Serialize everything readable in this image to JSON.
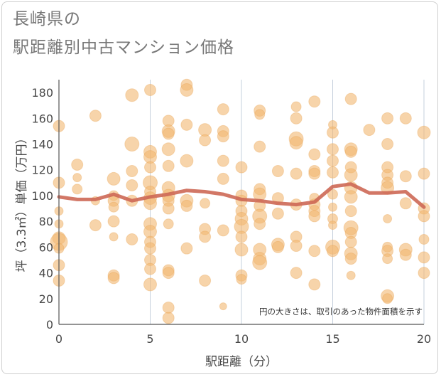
{
  "title_line1": "長崎県の",
  "title_line2": "駅距離別中古マンション価格",
  "chart_data": {
    "type": "scatter",
    "title": "長崎県の駅距離別中古マンション価格",
    "xlabel": "駅距離（分）",
    "ylabel": "坪（3.3㎡）単価（万円）",
    "xlim": [
      0,
      20
    ],
    "ylim": [
      0,
      190
    ],
    "xticks": [
      0,
      5,
      10,
      15,
      20
    ],
    "yticks": [
      0,
      20,
      40,
      60,
      80,
      100,
      120,
      140,
      160,
      180
    ],
    "grid": true,
    "annotation": "円の大きさは、取引のあった物件面積を示す",
    "colors": {
      "bubble": "#f2b872",
      "line": "#cd6855",
      "grid": "#c5d0dc",
      "axis": "#555555"
    },
    "series": [
      {
        "kind": "bubbles",
        "points": [
          [
            0,
            154,
            8
          ],
          [
            0,
            110,
            8
          ],
          [
            0,
            88,
            6
          ],
          [
            0,
            78,
            6
          ],
          [
            0,
            67,
            9
          ],
          [
            0,
            64,
            12
          ],
          [
            0,
            59,
            7
          ],
          [
            0,
            46,
            8
          ],
          [
            0,
            34,
            8
          ],
          [
            1,
            124,
            8
          ],
          [
            1,
            114,
            6
          ],
          [
            1,
            105,
            7
          ],
          [
            2,
            162,
            8
          ],
          [
            2,
            96,
            6
          ],
          [
            2,
            77,
            8
          ],
          [
            3,
            113,
            9
          ],
          [
            3,
            100,
            7
          ],
          [
            3,
            96,
            8
          ],
          [
            3,
            91,
            7
          ],
          [
            3,
            80,
            8
          ],
          [
            3,
            68,
            6
          ],
          [
            3,
            38,
            8
          ],
          [
            3,
            36,
            8
          ],
          [
            4,
            178,
            9
          ],
          [
            4,
            140,
            10
          ],
          [
            4,
            119,
            8
          ],
          [
            4,
            108,
            8
          ],
          [
            4,
            96,
            8
          ],
          [
            4,
            66,
            8
          ],
          [
            5,
            182,
            8
          ],
          [
            5,
            134,
            9
          ],
          [
            5,
            130,
            9
          ],
          [
            5,
            122,
            8
          ],
          [
            5,
            110,
            10
          ],
          [
            5,
            103,
            8
          ],
          [
            5,
            98,
            9
          ],
          [
            5,
            94,
            9
          ],
          [
            5,
            78,
            9
          ],
          [
            5,
            72,
            9
          ],
          [
            5,
            64,
            8
          ],
          [
            5,
            59,
            8
          ],
          [
            5,
            50,
            8
          ],
          [
            5,
            43,
            8
          ],
          [
            5,
            31,
            9
          ],
          [
            6,
            158,
            8
          ],
          [
            6,
            150,
            9
          ],
          [
            6,
            148,
            8
          ],
          [
            6,
            136,
            9
          ],
          [
            6,
            123,
            8
          ],
          [
            6,
            106,
            9
          ],
          [
            6,
            100,
            9
          ],
          [
            6,
            96,
            8
          ],
          [
            6,
            90,
            8
          ],
          [
            6,
            78,
            7
          ],
          [
            6,
            42,
            8
          ],
          [
            6,
            40,
            8
          ],
          [
            6,
            13,
            8
          ],
          [
            6,
            5,
            8
          ],
          [
            7,
            186,
            8
          ],
          [
            7,
            182,
            9
          ],
          [
            7,
            155,
            8
          ],
          [
            7,
            127,
            9
          ],
          [
            7,
            96,
            9
          ],
          [
            7,
            92,
            8
          ],
          [
            7,
            59,
            8
          ],
          [
            8,
            151,
            9
          ],
          [
            8,
            143,
            8
          ],
          [
            8,
            94,
            7
          ],
          [
            8,
            74,
            8
          ],
          [
            8,
            68,
            8
          ],
          [
            8,
            34,
            8
          ],
          [
            9,
            167,
            8
          ],
          [
            9,
            150,
            8
          ],
          [
            9,
            146,
            8
          ],
          [
            9,
            127,
            8
          ],
          [
            9,
            113,
            8
          ],
          [
            9,
            73,
            8
          ],
          [
            9,
            14,
            5
          ],
          [
            10,
            122,
            8
          ],
          [
            10,
            100,
            8
          ],
          [
            10,
            96,
            8
          ],
          [
            10,
            88,
            8
          ],
          [
            10,
            82,
            9
          ],
          [
            10,
            76,
            10
          ],
          [
            10,
            68,
            8
          ],
          [
            10,
            58,
            9
          ],
          [
            10,
            38,
            8
          ],
          [
            10,
            35,
            7
          ],
          [
            11,
            166,
            8
          ],
          [
            11,
            163,
            7
          ],
          [
            11,
            138,
            8
          ],
          [
            11,
            105,
            8
          ],
          [
            11,
            101,
            9
          ],
          [
            11,
            92,
            8
          ],
          [
            11,
            84,
            10
          ],
          [
            11,
            78,
            8
          ],
          [
            11,
            58,
            9
          ],
          [
            11,
            51,
            9
          ],
          [
            11,
            48,
            10
          ],
          [
            12,
            119,
            8
          ],
          [
            12,
            98,
            8
          ],
          [
            12,
            86,
            8
          ],
          [
            12,
            62,
            9
          ],
          [
            12,
            60,
            8
          ],
          [
            13,
            169,
            7
          ],
          [
            13,
            160,
            8
          ],
          [
            13,
            144,
            10
          ],
          [
            13,
            141,
            9
          ],
          [
            13,
            117,
            8
          ],
          [
            13,
            93,
            8
          ],
          [
            13,
            68,
            8
          ],
          [
            13,
            61,
            8
          ],
          [
            13,
            40,
            8
          ],
          [
            14,
            173,
            8
          ],
          [
            14,
            132,
            8
          ],
          [
            14,
            119,
            8
          ],
          [
            14,
            117,
            8
          ],
          [
            14,
            98,
            7
          ],
          [
            14,
            93,
            8
          ],
          [
            14,
            88,
            8
          ],
          [
            14,
            84,
            8
          ],
          [
            14,
            57,
            8
          ],
          [
            14,
            31,
            8
          ],
          [
            15,
            155,
            6
          ],
          [
            15,
            149,
            8
          ],
          [
            15,
            136,
            8
          ],
          [
            15,
            127,
            8
          ],
          [
            15,
            118,
            8
          ],
          [
            15,
            101,
            7
          ],
          [
            15,
            91,
            6
          ],
          [
            15,
            82,
            7
          ],
          [
            15,
            77,
            6
          ],
          [
            15,
            60,
            10
          ],
          [
            15,
            57,
            8
          ],
          [
            16,
            175,
            8
          ],
          [
            16,
            136,
            9
          ],
          [
            16,
            134,
            8
          ],
          [
            16,
            122,
            8
          ],
          [
            16,
            116,
            9
          ],
          [
            16,
            106,
            9
          ],
          [
            16,
            99,
            9
          ],
          [
            16,
            88,
            8
          ],
          [
            16,
            75,
            10
          ],
          [
            16,
            71,
            8
          ],
          [
            16,
            64,
            8
          ],
          [
            16,
            55,
            9
          ],
          [
            16,
            51,
            8
          ],
          [
            16,
            38,
            6
          ],
          [
            17,
            151,
            8
          ],
          [
            18,
            160,
            8
          ],
          [
            18,
            140,
            8
          ],
          [
            18,
            122,
            8
          ],
          [
            18,
            116,
            8
          ],
          [
            18,
            110,
            8
          ],
          [
            18,
            106,
            9
          ],
          [
            18,
            82,
            6
          ],
          [
            18,
            60,
            7
          ],
          [
            18,
            57,
            8
          ],
          [
            18,
            51,
            7
          ],
          [
            18,
            22,
            9
          ],
          [
            18,
            20,
            7
          ],
          [
            19,
            160,
            8
          ],
          [
            19,
            115,
            8
          ],
          [
            19,
            94,
            8
          ],
          [
            19,
            58,
            9
          ],
          [
            19,
            54,
            8
          ],
          [
            20,
            149,
            9
          ],
          [
            20,
            117,
            8
          ],
          [
            20,
            90,
            8
          ],
          [
            20,
            84,
            8
          ],
          [
            20,
            66,
            7
          ],
          [
            20,
            52,
            8
          ],
          [
            20,
            40,
            8
          ]
        ]
      },
      {
        "kind": "line",
        "points": [
          [
            0,
            99
          ],
          [
            1,
            97
          ],
          [
            2,
            97
          ],
          [
            3,
            101
          ],
          [
            4,
            96
          ],
          [
            5,
            99
          ],
          [
            6,
            101
          ],
          [
            7,
            104
          ],
          [
            8,
            103
          ],
          [
            9,
            101
          ],
          [
            10,
            97
          ],
          [
            11,
            96
          ],
          [
            12,
            94
          ],
          [
            13,
            93
          ],
          [
            14,
            95
          ],
          [
            15,
            107
          ],
          [
            16,
            109
          ],
          [
            17,
            102
          ],
          [
            18,
            102
          ],
          [
            19,
            103
          ],
          [
            20,
            91
          ]
        ]
      }
    ]
  }
}
